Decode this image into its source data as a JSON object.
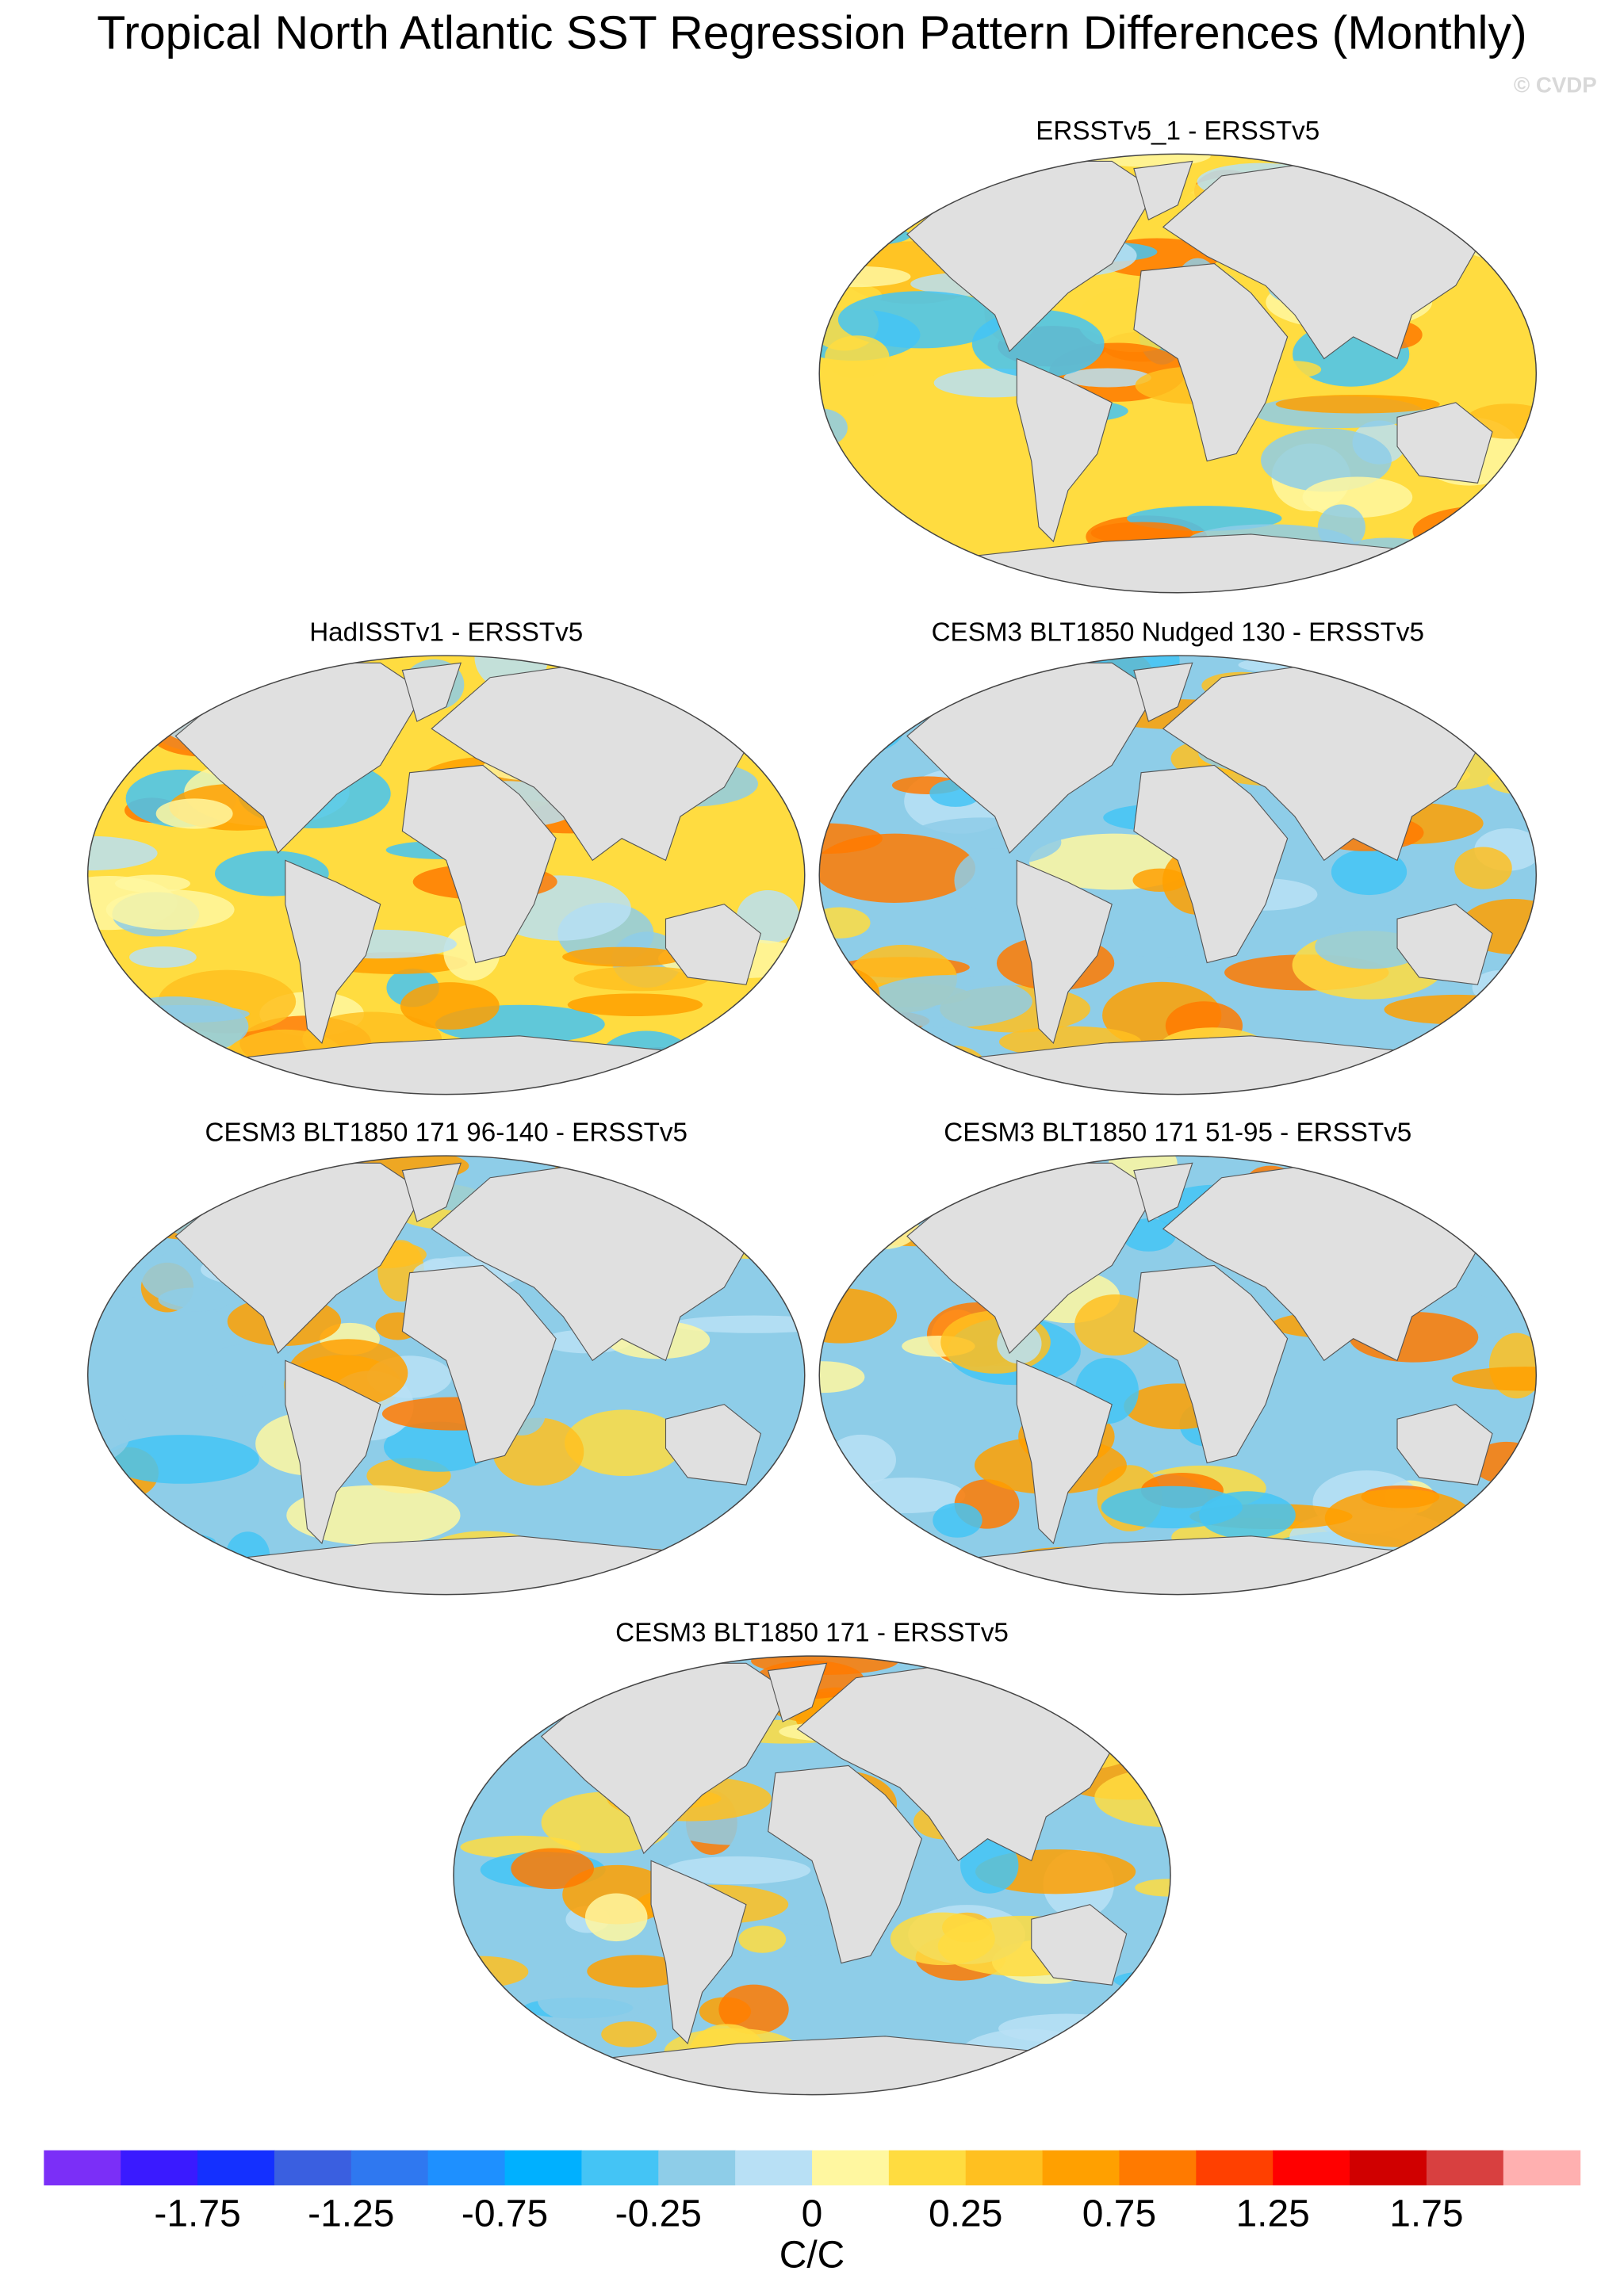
{
  "title": "Tropical North Atlantic SST Regression Pattern Differences (Monthly)",
  "watermark": "© CVDP",
  "panels": [
    {
      "title": "ERSSTv5_1 - ERSSTv5"
    },
    {
      "title": "HadISSTv1 - ERSSTv5"
    },
    {
      "title": "CESM3 BLT1850 Nudged 130 - ERSSTv5"
    },
    {
      "title": "CESM3 BLT1850 171 96-140 - ERSSTv5"
    },
    {
      "title": "CESM3 BLT1850 171 51-95 - ERSSTv5"
    },
    {
      "title": "CESM3 BLT1850 171 - ERSSTv5"
    }
  ],
  "colorbar": {
    "label": "C/C",
    "colors": [
      "#7b2ff7",
      "#3a1aff",
      "#1430ff",
      "#3a5fe0",
      "#2f78f0",
      "#1e90ff",
      "#00b0ff",
      "#44c4f5",
      "#8ecde8",
      "#b8e0f5",
      "#fff7a0",
      "#ffdc40",
      "#ffc020",
      "#ffa000",
      "#ff7a00",
      "#ff4000",
      "#ff0000",
      "#d00000",
      "#d84040",
      "#ffb0b0"
    ],
    "ticks": [
      -1.75,
      -1.25,
      -0.75,
      -0.25,
      0,
      0.25,
      0.75,
      1.25,
      1.75
    ]
  }
}
